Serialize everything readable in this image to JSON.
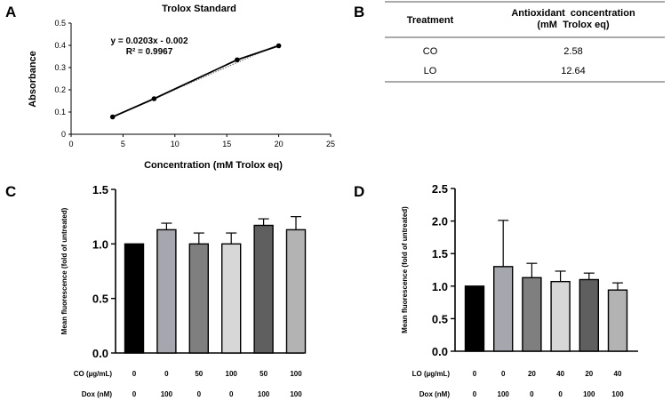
{
  "panel_labels": {
    "A": "A",
    "B": "B",
    "C": "C",
    "D": "D"
  },
  "panel_b": {
    "headers": [
      "Treatment",
      "Antioxidant  concentration",
      "(mM  Trolox eq)"
    ],
    "rows": [
      {
        "treatment": "CO",
        "value": "2.58"
      },
      {
        "treatment": "LO",
        "value": "12.64"
      }
    ]
  },
  "chart_data": [
    {
      "id": "A",
      "type": "line",
      "title": "Trolox Standard",
      "xlabel": "Concentration (mM Trolox eq)",
      "ylabel": "Absorbance",
      "xlim": [
        0,
        25
      ],
      "ylim": [
        0,
        0.5
      ],
      "xticks": [
        "0",
        "5",
        "10",
        "15",
        "20",
        "25"
      ],
      "yticks": [
        "0",
        "0.1",
        "0.2",
        "0.3",
        "0.4",
        "0.5"
      ],
      "x": [
        4,
        8,
        16,
        20
      ],
      "y": [
        0.078,
        0.16,
        0.335,
        0.398
      ],
      "annotations": [
        "y = 0.0203x - 0.002",
        "R² = 0.9967"
      ]
    },
    {
      "id": "C",
      "type": "bar",
      "ylabel": "Mean fluorescence (fold of untreated)",
      "ylim": [
        0,
        1.5
      ],
      "yticks": [
        "0.0",
        "0.5",
        "1.0",
        "1.5"
      ],
      "values": [
        1.0,
        1.13,
        1.0,
        1.0,
        1.17,
        1.13
      ],
      "errors": [
        0,
        0.06,
        0.1,
        0.1,
        0.06,
        0.12
      ],
      "colors": [
        "#000000",
        "#a6a6ae",
        "#7f7f7f",
        "#d7d7d7",
        "#5f5f5f",
        "#b3b3b3"
      ],
      "row_labels": [
        "CO (µg/mL)",
        "Dox (nM)"
      ],
      "rows": [
        [
          "0",
          "0",
          "50",
          "100",
          "50",
          "100"
        ],
        [
          "0",
          "100",
          "0",
          "0",
          "100",
          "100"
        ]
      ]
    },
    {
      "id": "D",
      "type": "bar",
      "ylabel": "Mean fluorescence (fold of untreated)",
      "ylim": [
        0,
        2.5
      ],
      "yticks": [
        "0.0",
        "0.5",
        "1.0",
        "1.5",
        "2.0",
        "2.5"
      ],
      "values": [
        1.0,
        1.3,
        1.13,
        1.07,
        1.1,
        0.94
      ],
      "errors": [
        0,
        0.71,
        0.22,
        0.16,
        0.1,
        0.11
      ],
      "colors": [
        "#000000",
        "#a6a6ae",
        "#7f7f7f",
        "#d7d7d7",
        "#5f5f5f",
        "#b3b3b3"
      ],
      "row_labels": [
        "LO (µg/mL)",
        "Dox (nM)"
      ],
      "rows": [
        [
          "0",
          "0",
          "20",
          "40",
          "20",
          "40"
        ],
        [
          "0",
          "100",
          "0",
          "0",
          "100",
          "100"
        ]
      ]
    }
  ]
}
